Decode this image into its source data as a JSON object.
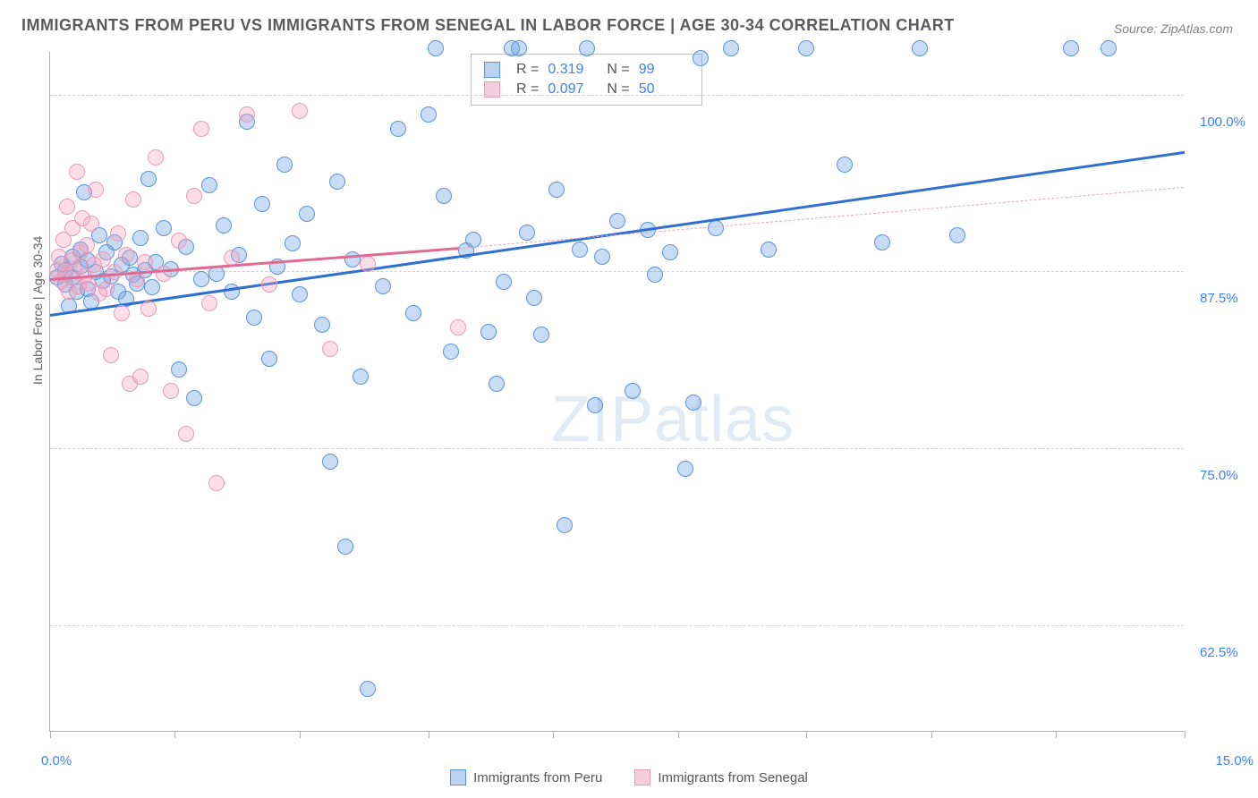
{
  "title": "IMMIGRANTS FROM PERU VS IMMIGRANTS FROM SENEGAL IN LABOR FORCE | AGE 30-34 CORRELATION CHART",
  "source": "Source: ZipAtlas.com",
  "ylabel": "In Labor Force | Age 30-34",
  "watermark_a": "ZIP",
  "watermark_b": "atlas",
  "chart": {
    "type": "scatter",
    "background_color": "#ffffff",
    "grid_color": "#d0d0d0",
    "axis_color": "#b0b0b0",
    "tick_label_color": "#3b82f6",
    "title_fontsize": 18,
    "label_fontsize": 14,
    "tick_fontsize": 15,
    "xlim": [
      0,
      15
    ],
    "ylim": [
      55,
      103
    ],
    "point_radius": 9,
    "y_gridlines": [
      62.5,
      75,
      87.5,
      100
    ],
    "y_ticklabels": [
      "62.5%",
      "75.0%",
      "87.5%",
      "100.0%"
    ],
    "x_tick_positions": [
      0,
      1.65,
      3.3,
      5.0,
      6.65,
      8.3,
      10.0,
      11.65,
      13.3,
      15.0
    ],
    "x_min_label": "0.0%",
    "x_max_label": "15.0%"
  },
  "series": [
    {
      "name": "Immigrants from Peru",
      "color_fill": "rgba(96,156,230,0.35)",
      "color_stroke": "#5b94d6",
      "legend_fill": "#b9d2f1",
      "legend_stroke": "#5b94d6",
      "R": "0.319",
      "N": "99",
      "trend": {
        "x1": 0,
        "y1": 84.5,
        "x2": 15,
        "y2": 96,
        "color": "#2f6fd0",
        "width": 3,
        "dash": false
      },
      "points": [
        [
          0.1,
          87
        ],
        [
          0.15,
          88
        ],
        [
          0.2,
          86.5
        ],
        [
          0.2,
          87.5
        ],
        [
          0.25,
          85
        ],
        [
          0.3,
          88.5
        ],
        [
          0.3,
          87
        ],
        [
          0.35,
          86
        ],
        [
          0.4,
          89
        ],
        [
          0.4,
          87.8
        ],
        [
          0.45,
          93
        ],
        [
          0.5,
          86.2
        ],
        [
          0.5,
          88.2
        ],
        [
          0.55,
          85.3
        ],
        [
          0.6,
          87.4
        ],
        [
          0.65,
          90
        ],
        [
          0.7,
          86.8
        ],
        [
          0.75,
          88.8
        ],
        [
          0.8,
          87.1
        ],
        [
          0.85,
          89.5
        ],
        [
          0.9,
          86
        ],
        [
          0.95,
          87.9
        ],
        [
          1.0,
          85.5
        ],
        [
          1.05,
          88.4
        ],
        [
          1.1,
          87.2
        ],
        [
          1.15,
          86.6
        ],
        [
          1.2,
          89.8
        ],
        [
          1.25,
          87.5
        ],
        [
          1.3,
          94
        ],
        [
          1.35,
          86.3
        ],
        [
          1.4,
          88.1
        ],
        [
          1.5,
          90.5
        ],
        [
          1.6,
          87.6
        ],
        [
          1.7,
          80.5
        ],
        [
          1.8,
          89.2
        ],
        [
          1.9,
          78.5
        ],
        [
          2.0,
          86.9
        ],
        [
          2.1,
          93.5
        ],
        [
          2.2,
          87.3
        ],
        [
          2.3,
          90.7
        ],
        [
          2.4,
          86
        ],
        [
          2.5,
          88.6
        ],
        [
          2.6,
          98
        ],
        [
          2.7,
          84.2
        ],
        [
          2.8,
          92.2
        ],
        [
          2.9,
          81.3
        ],
        [
          3.0,
          87.8
        ],
        [
          3.1,
          95
        ],
        [
          3.2,
          89.4
        ],
        [
          3.3,
          85.8
        ],
        [
          3.4,
          91.5
        ],
        [
          3.6,
          83.7
        ],
        [
          3.7,
          74
        ],
        [
          3.8,
          93.8
        ],
        [
          3.9,
          68
        ],
        [
          4.0,
          88.3
        ],
        [
          4.1,
          80
        ],
        [
          4.2,
          58
        ],
        [
          4.4,
          86.4
        ],
        [
          4.6,
          97.5
        ],
        [
          4.8,
          84.5
        ],
        [
          5.0,
          98.5
        ],
        [
          5.1,
          103.2
        ],
        [
          5.2,
          92.8
        ],
        [
          5.3,
          81.8
        ],
        [
          5.5,
          88.9
        ],
        [
          5.6,
          89.7
        ],
        [
          5.8,
          83.2
        ],
        [
          5.9,
          79.5
        ],
        [
          6.0,
          86.7
        ],
        [
          6.1,
          103.2
        ],
        [
          6.3,
          90.2
        ],
        [
          6.4,
          85.6
        ],
        [
          6.5,
          83
        ],
        [
          6.7,
          93.2
        ],
        [
          6.8,
          69.5
        ],
        [
          7.0,
          89
        ],
        [
          7.1,
          103.2
        ],
        [
          7.3,
          88.5
        ],
        [
          7.5,
          91
        ],
        [
          7.7,
          79
        ],
        [
          7.9,
          90.4
        ],
        [
          8.0,
          87.2
        ],
        [
          8.2,
          88.8
        ],
        [
          8.4,
          73.5
        ],
        [
          8.6,
          102.5
        ],
        [
          8.8,
          90.5
        ],
        [
          9.0,
          103.2
        ],
        [
          9.5,
          89
        ],
        [
          10.0,
          103.2
        ],
        [
          10.5,
          95
        ],
        [
          11.0,
          89.5
        ],
        [
          11.5,
          103.2
        ],
        [
          12.0,
          90
        ],
        [
          13.5,
          103.2
        ],
        [
          14.0,
          103.2
        ],
        [
          8.5,
          78.2
        ],
        [
          7.2,
          78
        ],
        [
          6.2,
          103.2
        ]
      ]
    },
    {
      "name": "Immigrants from Senegal",
      "color_fill": "rgba(244,160,190,0.35)",
      "color_stroke": "#e99ab8",
      "legend_fill": "#f6cddb",
      "legend_stroke": "#e99ab8",
      "R": "0.097",
      "N": "50",
      "trend": {
        "x1": 0,
        "y1": 87,
        "x2": 5.4,
        "y2": 89.2,
        "color": "#e06a94",
        "width": 3,
        "dash": false
      },
      "trend_ext": {
        "x1": 5.4,
        "y1": 89.2,
        "x2": 15,
        "y2": 93.5,
        "color": "#e8a6bc",
        "width": 1,
        "dash": true
      },
      "points": [
        [
          0.1,
          87.5
        ],
        [
          0.12,
          88.5
        ],
        [
          0.15,
          86.8
        ],
        [
          0.18,
          89.7
        ],
        [
          0.2,
          87.2
        ],
        [
          0.22,
          92
        ],
        [
          0.25,
          86
        ],
        [
          0.28,
          88.2
        ],
        [
          0.3,
          90.5
        ],
        [
          0.32,
          87.6
        ],
        [
          0.35,
          94.5
        ],
        [
          0.38,
          86.4
        ],
        [
          0.4,
          88.8
        ],
        [
          0.42,
          91.2
        ],
        [
          0.45,
          87.1
        ],
        [
          0.48,
          89.3
        ],
        [
          0.5,
          86.6
        ],
        [
          0.55,
          90.8
        ],
        [
          0.58,
          87.9
        ],
        [
          0.6,
          93.2
        ],
        [
          0.65,
          85.9
        ],
        [
          0.7,
          88.3
        ],
        [
          0.75,
          86.2
        ],
        [
          0.8,
          81.5
        ],
        [
          0.85,
          87.4
        ],
        [
          0.9,
          90.1
        ],
        [
          0.95,
          84.5
        ],
        [
          1.0,
          88.6
        ],
        [
          1.05,
          79.5
        ],
        [
          1.1,
          92.5
        ],
        [
          1.15,
          86.9
        ],
        [
          1.2,
          80
        ],
        [
          1.25,
          88.1
        ],
        [
          1.3,
          84.8
        ],
        [
          1.4,
          95.5
        ],
        [
          1.5,
          87.3
        ],
        [
          1.6,
          79
        ],
        [
          1.7,
          89.6
        ],
        [
          1.8,
          76
        ],
        [
          1.9,
          92.8
        ],
        [
          2.0,
          97.5
        ],
        [
          2.1,
          85.2
        ],
        [
          2.2,
          72.5
        ],
        [
          2.4,
          88.4
        ],
        [
          2.6,
          98.5
        ],
        [
          2.9,
          86.5
        ],
        [
          3.3,
          98.8
        ],
        [
          3.7,
          82
        ],
        [
          4.2,
          88
        ],
        [
          5.4,
          83.5
        ]
      ]
    }
  ],
  "bottom_legend_label": "legend",
  "top_legend": {
    "R_label": "R =",
    "N_label": "N ="
  }
}
